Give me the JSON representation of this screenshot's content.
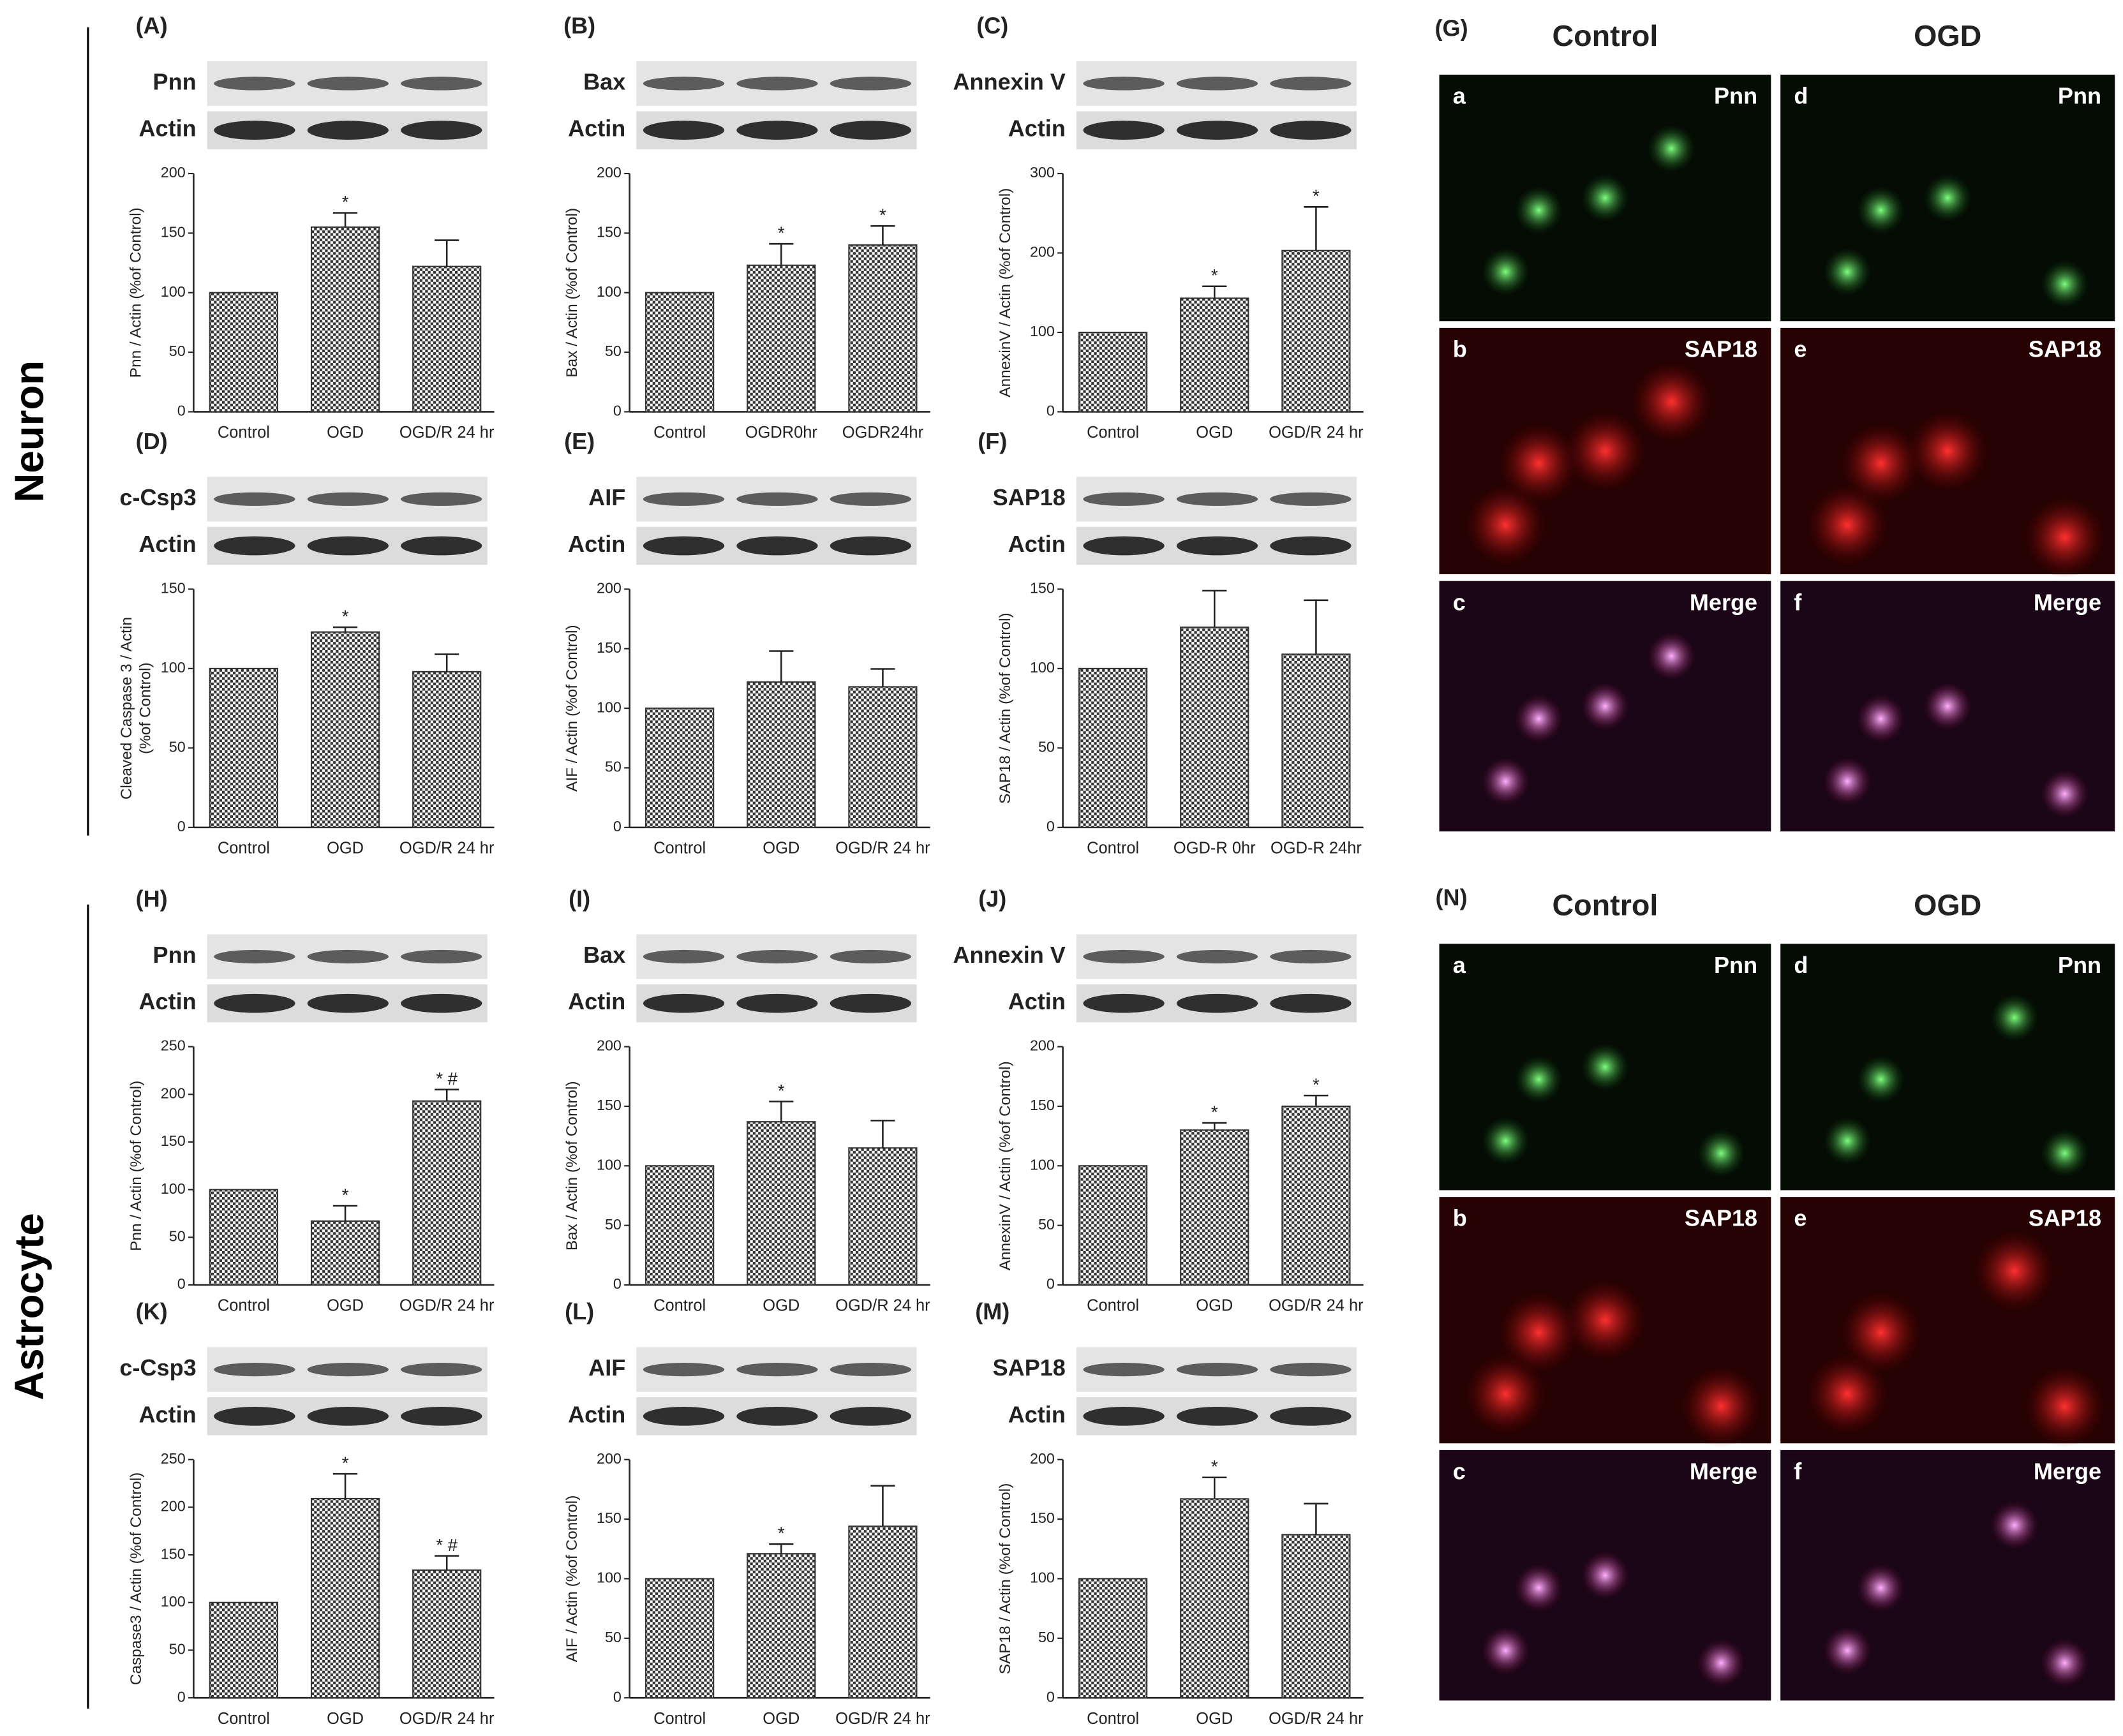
{
  "sections": [
    "Neuron",
    "Astrocyte"
  ],
  "chart_data": [
    {
      "type": "bar",
      "panel": "(A)",
      "blots": [
        "Pnn",
        "Actin"
      ],
      "ylabel": "Pnn / Actin (%of Control)",
      "categories": [
        "Control",
        "OGD",
        "OGD/R 24 hr"
      ],
      "values": [
        100,
        155,
        122
      ],
      "errors": [
        null,
        12,
        22
      ],
      "markers": [
        null,
        "*",
        null
      ],
      "ylim": [
        0,
        200
      ],
      "yticks": [
        0,
        50,
        100,
        150,
        200
      ],
      "color": "#333333"
    },
    {
      "type": "bar",
      "panel": "(B)",
      "blots": [
        "Bax",
        "Actin"
      ],
      "ylabel": "Bax / Actin (%of Control)",
      "categories": [
        "Control",
        "OGDR0hr",
        "OGDR24hr"
      ],
      "values": [
        100,
        123,
        140
      ],
      "errors": [
        null,
        18,
        16
      ],
      "markers": [
        null,
        "*",
        "*"
      ],
      "ylim": [
        0,
        200
      ],
      "yticks": [
        0,
        50,
        100,
        150,
        200
      ],
      "color": "#333333"
    },
    {
      "type": "bar",
      "panel": "(C)",
      "blots": [
        "Annexin V",
        "Actin"
      ],
      "ylabel": "AnnexinV / Actin (%of Control)",
      "categories": [
        "Control",
        "OGD",
        "OGD/R 24 hr"
      ],
      "values": [
        100,
        143,
        203
      ],
      "errors": [
        null,
        15,
        55
      ],
      "markers": [
        null,
        "*",
        "*"
      ],
      "ylim": [
        0,
        300
      ],
      "yticks": [
        0,
        100,
        200,
        300
      ],
      "color": "#333333"
    },
    {
      "type": "bar",
      "panel": "(D)",
      "blots": [
        "c-Csp3",
        "Actin"
      ],
      "ylabel": [
        "Cleaved Caspase 3 / Actin",
        "(%of Control)"
      ],
      "categories": [
        "Control",
        "OGD",
        "OGD/R 24 hr"
      ],
      "values": [
        100,
        123,
        98
      ],
      "errors": [
        null,
        3,
        11
      ],
      "markers": [
        null,
        "*",
        null
      ],
      "ylim": [
        0,
        150
      ],
      "yticks": [
        0,
        50,
        100,
        150
      ],
      "color": "#333333"
    },
    {
      "type": "bar",
      "panel": "(E)",
      "blots": [
        "AIF",
        "Actin"
      ],
      "ylabel": "AIF / Actin (%of Control)",
      "categories": [
        "Control",
        "OGD",
        "OGD/R 24 hr"
      ],
      "values": [
        100,
        122,
        118
      ],
      "errors": [
        null,
        26,
        15
      ],
      "ylim": [
        0,
        200
      ],
      "yticks": [
        0,
        50,
        100,
        150,
        200
      ],
      "color": "#333333"
    },
    {
      "type": "bar",
      "panel": "(F)",
      "blots": [
        "SAP18",
        "Actin"
      ],
      "ylabel": "SAP18 / Actin (%of Control)",
      "categories": [
        "Control",
        "OGD-R 0hr",
        "OGD-R 24hr"
      ],
      "values": [
        100,
        126,
        109
      ],
      "errors": [
        null,
        23,
        34
      ],
      "ylim": [
        0,
        150
      ],
      "yticks": [
        0,
        50,
        100,
        150
      ],
      "color": "#333333"
    },
    {
      "type": "bar",
      "panel": "(H)",
      "blots": [
        "Pnn",
        "Actin"
      ],
      "ylabel": "Pnn / Actin (%of Control)",
      "categories": [
        "Control",
        "OGD",
        "OGD/R 24 hr"
      ],
      "values": [
        100,
        67,
        193
      ],
      "errors": [
        null,
        16,
        12
      ],
      "markers": [
        null,
        "*",
        "* #"
      ],
      "ylim": [
        0,
        250
      ],
      "yticks": [
        0,
        50,
        100,
        150,
        200,
        250
      ],
      "color": "#333333"
    },
    {
      "type": "bar",
      "panel": "(I)",
      "blots": [
        "Bax",
        "Actin"
      ],
      "ylabel": "Bax / Actin (%of Control)",
      "categories": [
        "Control",
        "OGD",
        "OGD/R 24 hr"
      ],
      "values": [
        100,
        137,
        115
      ],
      "errors": [
        null,
        17,
        23
      ],
      "markers": [
        null,
        "*",
        null
      ],
      "ylim": [
        0,
        200
      ],
      "yticks": [
        0,
        50,
        100,
        150,
        200
      ],
      "color": "#333333"
    },
    {
      "type": "bar",
      "panel": "(J)",
      "blots": [
        "Annexin V",
        "Actin"
      ],
      "ylabel": "AnnexinV / Actin (%of Control)",
      "categories": [
        "Control",
        "OGD",
        "OGD/R 24 hr"
      ],
      "values": [
        100,
        130,
        150
      ],
      "errors": [
        null,
        6,
        9
      ],
      "markers": [
        null,
        "*",
        "*"
      ],
      "ylim": [
        0,
        200
      ],
      "yticks": [
        0,
        50,
        100,
        150,
        200
      ],
      "color": "#333333"
    },
    {
      "type": "bar",
      "panel": "(K)",
      "blots": [
        "c-Csp3",
        "Actin"
      ],
      "ylabel": "Caspase3 / Actin (%of Control)",
      "categories": [
        "Control",
        "OGD",
        "OGD/R 24 hr"
      ],
      "values": [
        100,
        209,
        134
      ],
      "errors": [
        null,
        26,
        15
      ],
      "markers": [
        null,
        "*",
        "* #"
      ],
      "ylim": [
        0,
        250
      ],
      "yticks": [
        0,
        50,
        100,
        150,
        200,
        250
      ],
      "color": "#333333"
    },
    {
      "type": "bar",
      "panel": "(L)",
      "blots": [
        "AIF",
        "Actin"
      ],
      "ylabel": "AIF / Actin (%of Control)",
      "categories": [
        "Control",
        "OGD",
        "OGD/R 24 hr"
      ],
      "values": [
        100,
        121,
        144
      ],
      "errors": [
        null,
        8,
        34
      ],
      "markers": [
        null,
        "*",
        null
      ],
      "ylim": [
        0,
        200
      ],
      "yticks": [
        0,
        50,
        100,
        150,
        200
      ],
      "color": "#333333"
    },
    {
      "type": "bar",
      "panel": "(M)",
      "blots": [
        "SAP18",
        "Actin"
      ],
      "ylabel": "SAP18 / Actin (%of Control)",
      "categories": [
        "Control",
        "OGD",
        "OGD/R 24 hr"
      ],
      "values": [
        100,
        167,
        137
      ],
      "errors": [
        null,
        18,
        26
      ],
      "markers": [
        null,
        "*",
        null
      ],
      "ylim": [
        0,
        200
      ],
      "yticks": [
        0,
        50,
        100,
        150,
        200
      ],
      "color": "#333333"
    }
  ],
  "micrographs": [
    {
      "panel": "(G)",
      "columns": [
        "Control",
        "OGD"
      ],
      "cells": [
        [
          {
            "letter": "a",
            "stain": "Pnn"
          },
          {
            "letter": "b",
            "stain": "SAP18"
          },
          {
            "letter": "c",
            "stain": "Merge"
          }
        ],
        [
          {
            "letter": "d",
            "stain": "Pnn"
          },
          {
            "letter": "e",
            "stain": "SAP18"
          },
          {
            "letter": "f",
            "stain": "Merge"
          }
        ]
      ]
    },
    {
      "panel": "(N)",
      "columns": [
        "Control",
        "OGD"
      ],
      "cells": [
        [
          {
            "letter": "a",
            "stain": "Pnn"
          },
          {
            "letter": "b",
            "stain": "SAP18"
          },
          {
            "letter": "c",
            "stain": "Merge"
          }
        ],
        [
          {
            "letter": "d",
            "stain": "Pnn"
          },
          {
            "letter": "e",
            "stain": "SAP18"
          },
          {
            "letter": "f",
            "stain": "Merge"
          }
        ]
      ]
    }
  ]
}
